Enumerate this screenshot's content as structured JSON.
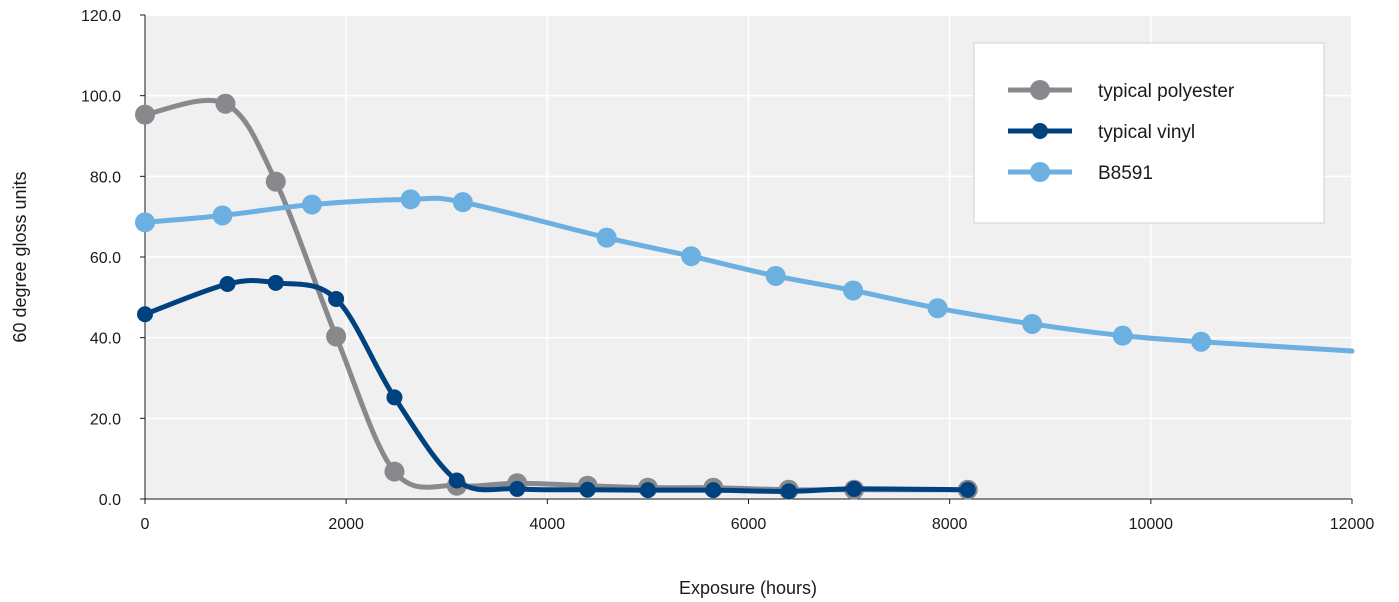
{
  "chart_data": {
    "type": "line",
    "title": "",
    "xlabel": "Exposure (hours)",
    "ylabel": "60 degree gloss units",
    "xlim": [
      0,
      12000
    ],
    "ylim": [
      0,
      120
    ],
    "x_ticks": [
      "0",
      "2000",
      "4000",
      "6000",
      "8000",
      "10000",
      "12000"
    ],
    "y_ticks": [
      "0.0",
      "20.0",
      "40.0",
      "60.0",
      "80.0",
      "100.0",
      "120.0"
    ],
    "grid": true,
    "smooth": true,
    "legend_position": "top-right",
    "series": [
      {
        "name": "typical polyester",
        "color": "#88898d",
        "x": [
          0,
          800,
          1300,
          1900,
          2480,
          3100,
          3700,
          4400,
          5000,
          5650,
          6400,
          7050,
          8180
        ],
        "y": [
          95.3,
          98.0,
          78.7,
          40.3,
          6.8,
          3.3,
          3.9,
          3.3,
          2.8,
          2.8,
          2.3,
          2.3,
          2.3
        ]
      },
      {
        "name": "typical vinyl",
        "color": "#00427f",
        "x": [
          0,
          820,
          1300,
          1900,
          2480,
          3100,
          3700,
          4400,
          5000,
          5650,
          6400,
          7050,
          8180
        ],
        "y": [
          45.8,
          53.3,
          53.6,
          49.6,
          25.2,
          4.6,
          2.5,
          2.3,
          2.2,
          2.2,
          1.9,
          2.5,
          2.3
        ]
      },
      {
        "name": "B8591",
        "color": "#6bb0e0",
        "x": [
          0,
          770,
          1660,
          2640,
          3160,
          4590,
          5430,
          6270,
          7040,
          7880,
          8820,
          9720,
          10500,
          12000
        ],
        "y": [
          68.6,
          70.3,
          73.0,
          74.3,
          73.6,
          64.8,
          60.2,
          55.3,
          51.7,
          47.3,
          43.4,
          40.5,
          39.0,
          36.7
        ],
        "marker_count": 13
      }
    ]
  }
}
